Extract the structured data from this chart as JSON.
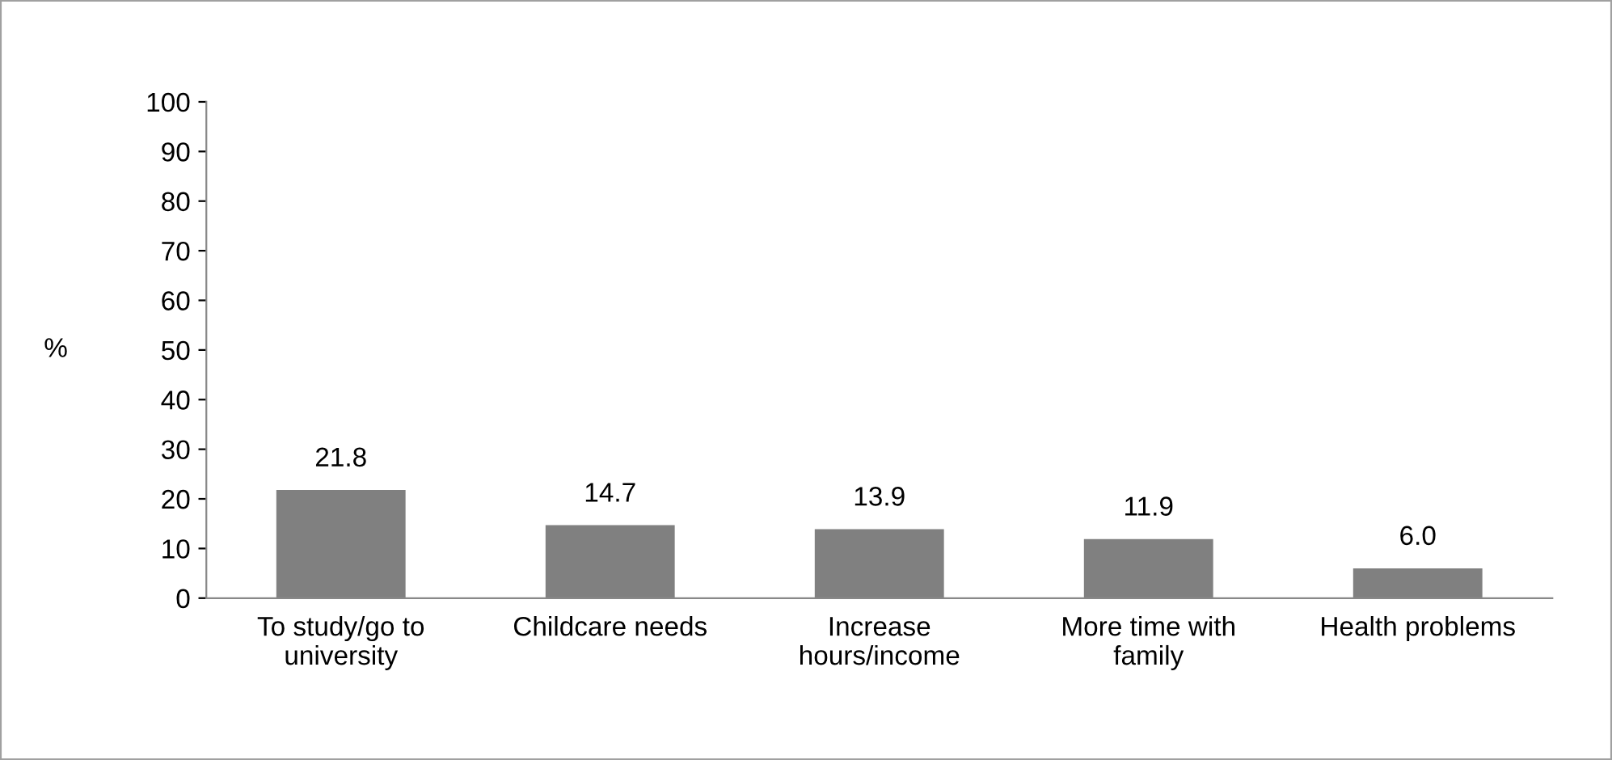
{
  "chart_data": {
    "type": "bar",
    "ylabel": "%",
    "categories": [
      "To study/go to\nuniversity",
      "Childcare needs",
      "Increase\nhours/income",
      "More time with\nfamily",
      "Health problems"
    ],
    "values": [
      21.8,
      14.7,
      13.9,
      11.9,
      6.0
    ],
    "value_labels": [
      "21.8",
      "14.7",
      "13.9",
      "11.9",
      "6.0"
    ],
    "color": "#808080",
    "ylim": [
      0,
      100
    ],
    "yticks": [
      0,
      10,
      20,
      30,
      40,
      50,
      60,
      70,
      80,
      90,
      100
    ],
    "grid": false,
    "legend": false
  }
}
